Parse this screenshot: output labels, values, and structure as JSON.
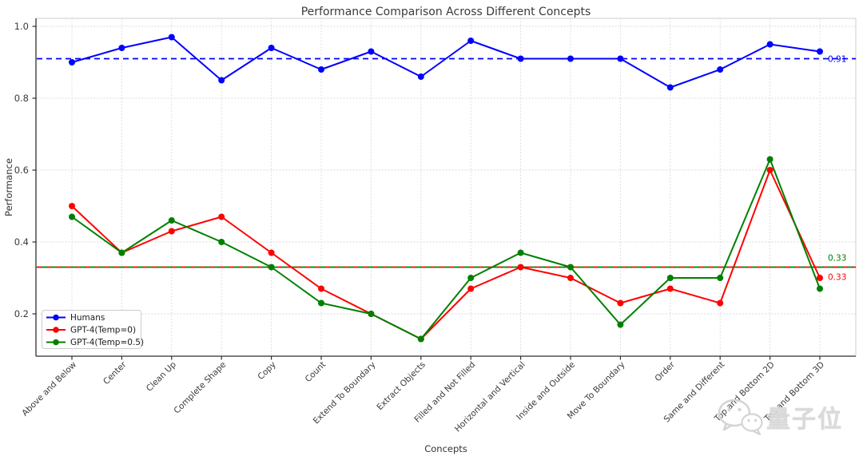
{
  "figure": {
    "title": "Performance Comparison Across Different Concepts",
    "title_color": "#3a3a3a",
    "background": "#ffffff"
  },
  "watermark": {
    "text": "量子位",
    "icon": "wechat-logo",
    "color": "#d9d9d9"
  },
  "chart_data": {
    "type": "line",
    "title": "Performance Comparison Across Different Concepts",
    "xlabel": "Concepts",
    "ylabel": "Performance",
    "ylim": [
      0.08,
      1.02
    ],
    "yticks": [
      0.2,
      0.4,
      0.6,
      0.8,
      1.0
    ],
    "ytick_labels": [
      "0.2",
      "0.4",
      "0.6",
      "0.8",
      "1.0"
    ],
    "grid": true,
    "grid_style": "dotted",
    "legend_position": "lower-left",
    "x_tick_rotation": 45,
    "categories": [
      "Above and Below",
      "Center",
      "Clean Up",
      "Complete Shape",
      "Copy",
      "Count",
      "Extend To Boundary",
      "Extract Objects",
      "Filled and Not Filled",
      "Horizontal and Vertical",
      "Inside and Outside",
      "Move To Boundary",
      "Order",
      "Same and Different",
      "Top and Bottom 2D",
      "Top and Bottom 3D"
    ],
    "series": [
      {
        "name": "Humans",
        "color": "#0000ff",
        "marker": "circle",
        "values": [
          0.9,
          0.94,
          0.97,
          0.85,
          0.94,
          0.88,
          0.93,
          0.86,
          0.96,
          0.91,
          0.91,
          0.91,
          0.83,
          0.88,
          0.95,
          0.93
        ]
      },
      {
        "name": "GPT-4(Temp=0)",
        "color": "#ff0000",
        "marker": "circle",
        "values": [
          0.5,
          0.37,
          0.43,
          0.47,
          0.37,
          0.27,
          0.2,
          0.13,
          0.27,
          0.33,
          0.3,
          0.23,
          0.27,
          0.23,
          0.6,
          0.3
        ]
      },
      {
        "name": "GPT-4(Temp=0.5)",
        "color": "#008000",
        "marker": "circle",
        "values": [
          0.47,
          0.37,
          0.46,
          0.4,
          0.33,
          0.23,
          0.2,
          0.13,
          0.3,
          0.37,
          0.33,
          0.17,
          0.3,
          0.3,
          0.63,
          0.27
        ]
      }
    ],
    "mean_lines": [
      {
        "series": "Humans",
        "value": 0.91,
        "label": "0.91",
        "color": "#0000ff",
        "style": "dashed",
        "label_side": "middle"
      },
      {
        "series": "GPT-4(Temp=0)",
        "value": 0.33,
        "label": "0.33",
        "color": "#ff0000",
        "style": "dashed",
        "label_side": "below"
      },
      {
        "series": "GPT-4(Temp=0.5)",
        "value": 0.33,
        "label": "0.33",
        "color": "#008000",
        "style": "dashed",
        "label_side": "above"
      }
    ]
  }
}
